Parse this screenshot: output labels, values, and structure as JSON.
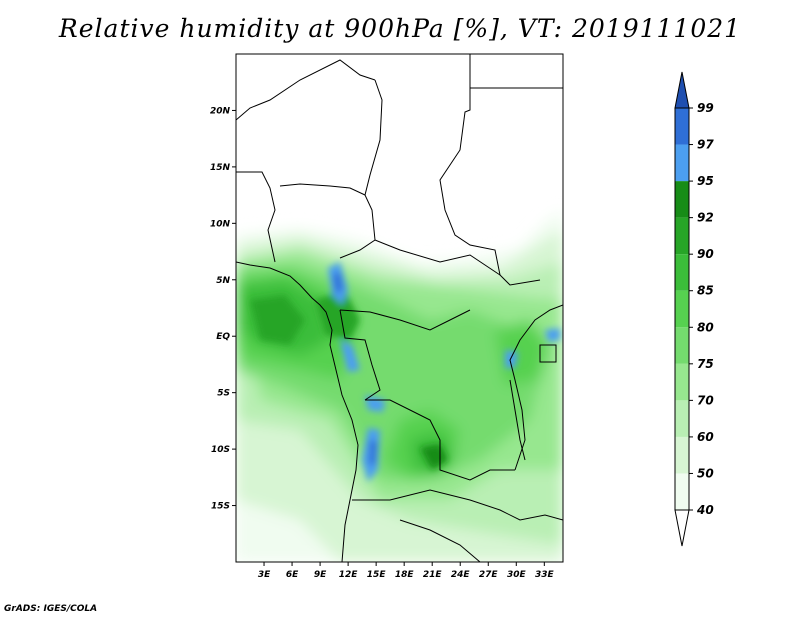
{
  "title": "Relative humidity at 900hPa [%], VT: 2019111021",
  "credit": "GrADS: IGES/COLA",
  "map": {
    "lat_range": [
      -20,
      25
    ],
    "lon_range": [
      0,
      35
    ],
    "lat_ticks": [
      {
        "value": 20,
        "label": "20N"
      },
      {
        "value": 15,
        "label": "15N"
      },
      {
        "value": 10,
        "label": "10N"
      },
      {
        "value": 5,
        "label": "5N"
      },
      {
        "value": 0,
        "label": "EQ"
      },
      {
        "value": -5,
        "label": "5S"
      },
      {
        "value": -10,
        "label": "10S"
      },
      {
        "value": -15,
        "label": "15S"
      }
    ],
    "lon_ticks": [
      {
        "value": 3,
        "label": "3E"
      },
      {
        "value": 6,
        "label": "6E"
      },
      {
        "value": 9,
        "label": "9E"
      },
      {
        "value": 12,
        "label": "12E"
      },
      {
        "value": 15,
        "label": "15E"
      },
      {
        "value": 18,
        "label": "18E"
      },
      {
        "value": 21,
        "label": "21E"
      },
      {
        "value": 24,
        "label": "24E"
      },
      {
        "value": 27,
        "label": "27E"
      },
      {
        "value": 30,
        "label": "30E"
      },
      {
        "value": 33,
        "label": "33E"
      }
    ]
  },
  "colorbar": {
    "levels": [
      {
        "label": "40",
        "color": "#f0fcf0"
      },
      {
        "label": "50",
        "color": "#d7f5d3"
      },
      {
        "label": "60",
        "color": "#b9efb4"
      },
      {
        "label": "70",
        "color": "#97e78f"
      },
      {
        "label": "75",
        "color": "#74db6e"
      },
      {
        "label": "80",
        "color": "#56d150"
      },
      {
        "label": "85",
        "color": "#3bbd3a"
      },
      {
        "label": "90",
        "color": "#27a527"
      },
      {
        "label": "92",
        "color": "#178c17"
      },
      {
        "label": "95",
        "color": "#4c9ff0"
      },
      {
        "label": "97",
        "color": "#2f6fd6"
      },
      {
        "label": "99",
        "color": "#1f4fb0"
      }
    ]
  }
}
